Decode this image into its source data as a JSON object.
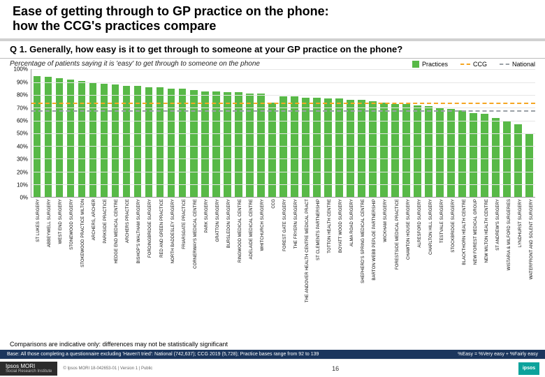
{
  "title_l1": "Ease of getting through to GP practice on the phone:",
  "title_l2": "how the CCG's practices compare",
  "question": "Q 1. Generally, how easy is it to get through to someone at your GP practice on the phone?",
  "subhead": "Percentage of patients saying it is 'easy' to get through to someone on the phone",
  "legend": {
    "practices": "Practices",
    "ccg": "CCG",
    "national": "National"
  },
  "colors": {
    "bar": "#58b947",
    "ccg_line": "#f5a623",
    "national_line": "#9aa0a6",
    "grid": "#e6e6e6",
    "axis": "#999999",
    "base_bg": "#1b365d",
    "ipsos": "#0da39c"
  },
  "chart": {
    "ylim": [
      0,
      100
    ],
    "y_ticks": [
      0,
      10,
      20,
      30,
      40,
      50,
      60,
      70,
      80,
      90,
      100
    ],
    "y_tick_labels": [
      "0%",
      "10%",
      "20%",
      "30%",
      "40%",
      "50%",
      "60%",
      "70%",
      "80%",
      "90%",
      "100%"
    ],
    "ccg_value": 74,
    "national_value": 68,
    "practices": [
      {
        "label": "ST LUKES SURGERY",
        "v": 95
      },
      {
        "label": "ABBEYWELL SURGERY",
        "v": 94
      },
      {
        "label": "WEST END SURGERY",
        "v": 93
      },
      {
        "label": "STONEWOOD SURGERY",
        "v": 92
      },
      {
        "label": "STOKEWOOD PRACTICE MILTON",
        "v": 91
      },
      {
        "label": "ARCHERS, ARCHER",
        "v": 90
      },
      {
        "label": "PARKSIDE PRACTICE",
        "v": 89
      },
      {
        "label": "HEDGE END MEDICAL CENTRE",
        "v": 88
      },
      {
        "label": "ARCHERS PRACTICE",
        "v": 87
      },
      {
        "label": "BISHOP'S WALTHAM SURGERY",
        "v": 87
      },
      {
        "label": "FORDINGBRIDGE SURGERY",
        "v": 86
      },
      {
        "label": "RED AND GREEN PRACTICE",
        "v": 86
      },
      {
        "label": "NORTH BADDESLEY SURGERY",
        "v": 85
      },
      {
        "label": "FRIARSGATE PRACTICE",
        "v": 85
      },
      {
        "label": "CORNERWAYS MEDICAL CENTRE",
        "v": 84
      },
      {
        "label": "PARK SURGERY",
        "v": 83
      },
      {
        "label": "GRATTON SURGERY",
        "v": 83
      },
      {
        "label": "BURSLEDON SURGERY",
        "v": 82
      },
      {
        "label": "RINGWOOD MEDICAL CENTRE",
        "v": 82
      },
      {
        "label": "ADELAIDE MEDICAL CENTRE",
        "v": 81
      },
      {
        "label": "WHITCHURCH SURGERY",
        "v": 81
      },
      {
        "label": "CCG",
        "v": 74
      },
      {
        "label": "FOREST GATE SURGERY",
        "v": 79
      },
      {
        "label": "THE FRYERN SURGERY",
        "v": 79
      },
      {
        "label": "THE ANDOVER HEALTH CENTRE MEDICAL PRACT",
        "v": 78
      },
      {
        "label": "ST CLEMENTS PARTNERSHIP",
        "v": 78
      },
      {
        "label": "TOTTON HEALTH CENTRE",
        "v": 77
      },
      {
        "label": "BOYATT WOOD SURGERY",
        "v": 77
      },
      {
        "label": "ALMA ROAD SURGERY",
        "v": 76
      },
      {
        "label": "SHEPHERD'S SPRING MEDICAL CENTRE",
        "v": 76
      },
      {
        "label": "BARTON WEBB PEPLOE PARTNERSHIP",
        "v": 75
      },
      {
        "label": "WICKHAM SURGERY",
        "v": 74
      },
      {
        "label": "FORESTSIDE MEDICAL PRACTICE",
        "v": 73
      },
      {
        "label": "CHAWTON HOUSE SURGERY",
        "v": 73
      },
      {
        "label": "ALRESFORD SURGERY",
        "v": 72
      },
      {
        "label": "CHARLTON HILL SURGERY",
        "v": 71
      },
      {
        "label": "TESTVALE SURGERY",
        "v": 70
      },
      {
        "label": "STOCKBRIDGE SURGERY",
        "v": 69
      },
      {
        "label": "BLACKTHORN HEALTH CENTRE",
        "v": 68
      },
      {
        "label": "NEW FOREST MEDICAL GROUP",
        "v": 66
      },
      {
        "label": "NEW MILTON HEALTH CENTRE",
        "v": 65
      },
      {
        "label": "ST ANDREW'S SURGERY",
        "v": 62
      },
      {
        "label": "WISTARIA & MILFORD SURGERIES",
        "v": 60
      },
      {
        "label": "LYNDHURST SURGERY",
        "v": 57
      },
      {
        "label": "WATERFRONT AND SOLENT SURGERY",
        "v": 50
      }
    ]
  },
  "comparison_note": "Comparisons are indicative only: differences may not be statistically significant",
  "base_text": "Base: All those completing a questionnaire excluding 'Haven't tried': National (742,637); CCG 2019 (5,728); Practice bases range from 92 to 139",
  "easy_def": "%Easy = %Very easy + %Fairly easy",
  "mori_top": "Ipsos MORI",
  "mori_bottom": "Social Research Institute",
  "copyright": "© Ipsos MORI    18-042653-01 | Version 1 | Public",
  "page_num": "16",
  "ipsos_label": "ipsos"
}
